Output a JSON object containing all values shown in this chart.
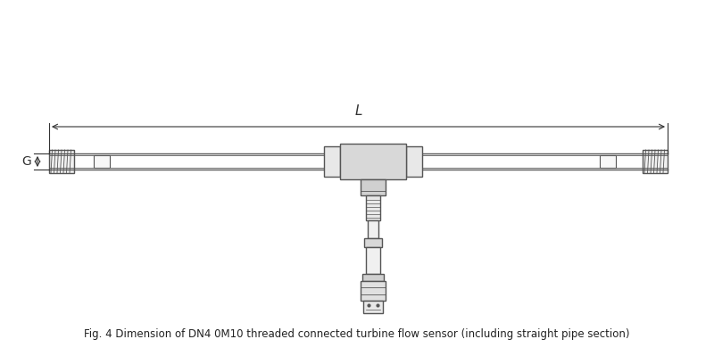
{
  "title": "Fig. 4 Dimension of DN4 0M10 threaded connected turbine flow sensor (including straight pipe section)",
  "background_color": "#ffffff",
  "line_color": "#555555",
  "dim_color": "#333333",
  "label_G": "G",
  "label_L": "L",
  "fig_width": 8.0,
  "fig_height": 3.99,
  "dpi": 100
}
